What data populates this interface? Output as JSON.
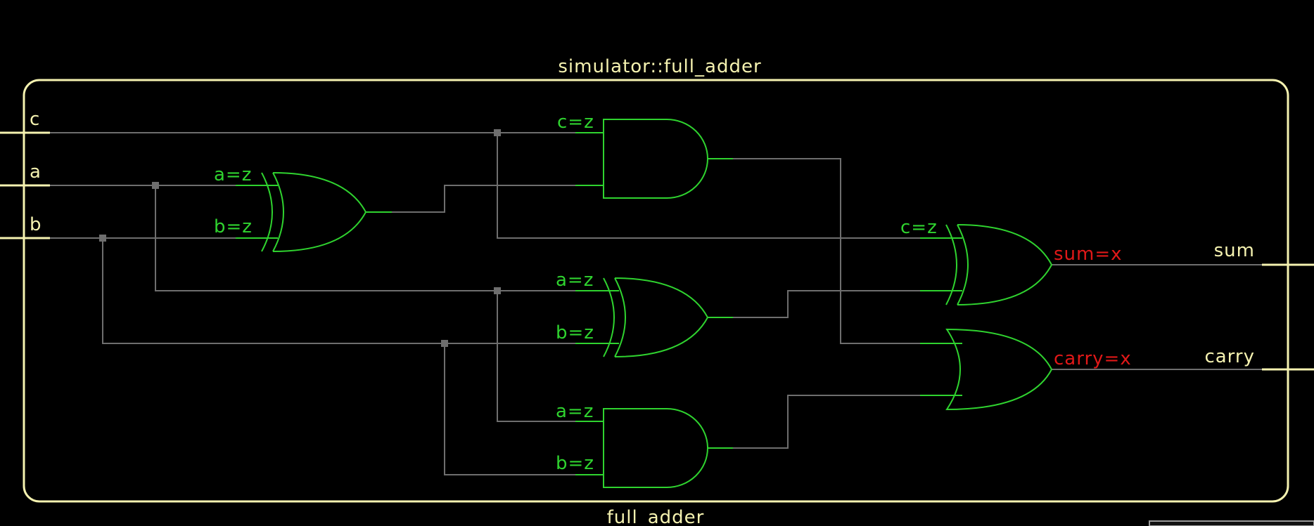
{
  "module_title": "simulator::full_adder",
  "module_footer": "full_adder",
  "ports": {
    "in_c": "c",
    "in_a": "a",
    "in_b": "b",
    "out_sum": "sum",
    "out_carry": "carry"
  },
  "gates": {
    "xor1": {
      "in1": "a=z",
      "in2": "b=z"
    },
    "and1": {
      "in1": "c=z"
    },
    "xor2": {
      "in1": "a=z",
      "in2": "b=z"
    },
    "and2": {
      "in1": "a=z",
      "in2": "b=z"
    },
    "xor3": {
      "in1": "c=z",
      "out": "sum=x"
    },
    "or1": {
      "out": "carry=x"
    }
  },
  "colors": {
    "background": "#000000",
    "border": "#f5f2b0",
    "gate": "#2fd32f",
    "wire": "#6e6e6e",
    "unknown_value": "#e01818"
  }
}
